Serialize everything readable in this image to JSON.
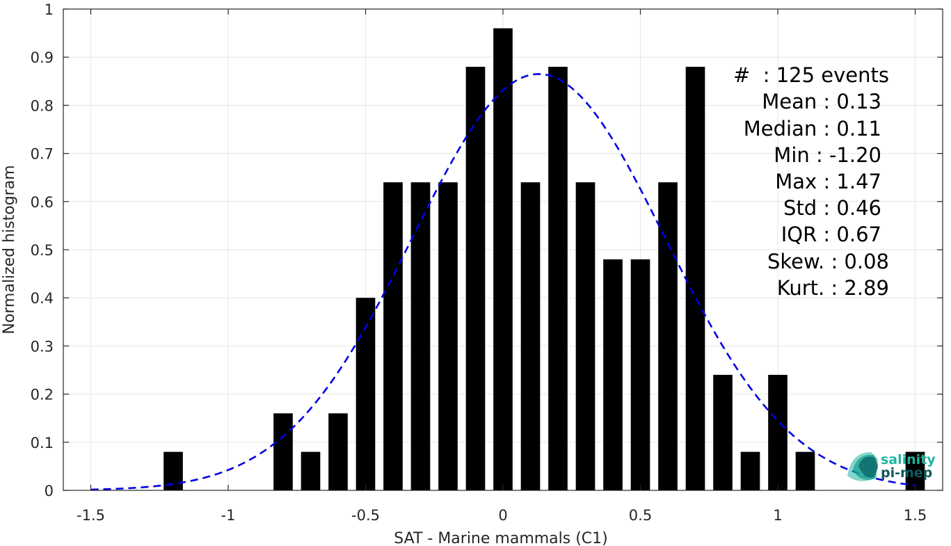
{
  "chart_data": {
    "type": "bar",
    "xlabel": "SAT - Marine mammals (C1)",
    "ylabel": "Normalized histogram",
    "xlim": [
      -1.6,
      1.6
    ],
    "ylim": [
      0,
      1
    ],
    "xticks": [
      -1.5,
      -1,
      -0.5,
      0,
      0.5,
      1,
      1.5
    ],
    "xtick_labels": [
      "-1.5",
      "-1",
      "-0.5",
      "0",
      "0.5",
      "1",
      "1.5"
    ],
    "yticks": [
      0,
      0.1,
      0.2,
      0.3,
      0.4,
      0.5,
      0.6,
      0.7,
      0.8,
      0.9,
      1
    ],
    "ytick_labels": [
      "0",
      "0.1",
      "0.2",
      "0.3",
      "0.4",
      "0.5",
      "0.6",
      "0.7",
      "0.8",
      "0.9",
      "1"
    ],
    "grid": true,
    "bar_width": 0.07,
    "bar_color": "#000000",
    "bars": [
      {
        "x": -1.2,
        "y": 0.08
      },
      {
        "x": -0.8,
        "y": 0.16
      },
      {
        "x": -0.7,
        "y": 0.08
      },
      {
        "x": -0.6,
        "y": 0.16
      },
      {
        "x": -0.5,
        "y": 0.4
      },
      {
        "x": -0.4,
        "y": 0.64
      },
      {
        "x": -0.3,
        "y": 0.64
      },
      {
        "x": -0.2,
        "y": 0.64
      },
      {
        "x": -0.1,
        "y": 0.88
      },
      {
        "x": 0.0,
        "y": 0.96
      },
      {
        "x": 0.1,
        "y": 0.64
      },
      {
        "x": 0.2,
        "y": 0.88
      },
      {
        "x": 0.3,
        "y": 0.64
      },
      {
        "x": 0.4,
        "y": 0.48
      },
      {
        "x": 0.5,
        "y": 0.48
      },
      {
        "x": 0.6,
        "y": 0.64
      },
      {
        "x": 0.7,
        "y": 0.88
      },
      {
        "x": 0.8,
        "y": 0.24
      },
      {
        "x": 0.9,
        "y": 0.08
      },
      {
        "x": 1.0,
        "y": 0.24
      },
      {
        "x": 1.1,
        "y": 0.08
      },
      {
        "x": 1.5,
        "y": 0.08
      }
    ],
    "fit_curve": {
      "style": "dashed",
      "color": "#0000e6",
      "mean": 0.13,
      "std": 0.46,
      "peak": 0.865,
      "x_range": [
        -1.5,
        1.5
      ]
    },
    "stats_lines": [
      "#  : 125 events",
      "Mean : 0.13",
      "Median : 0.11",
      "Min : -1.20",
      "Max : 1.47",
      "Std : 0.46",
      "IQR : 0.67",
      "Skew. : 0.08",
      "Kurt. : 2.89"
    ],
    "logo": {
      "line1": "salinity",
      "line2": "pi-mep",
      "color1": "#1fb5a0",
      "color2": "#0f5a60"
    }
  }
}
